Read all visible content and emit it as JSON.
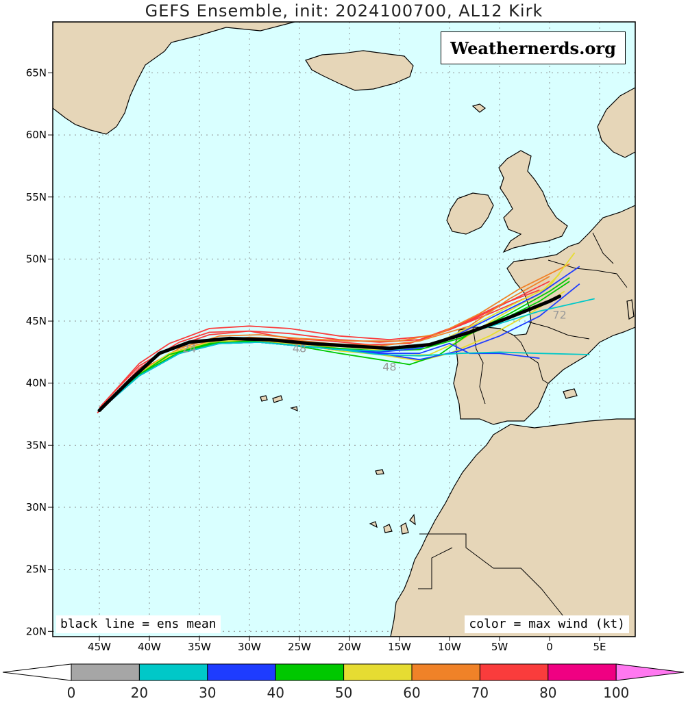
{
  "title": "GEFS Ensemble, init: 2024100700, AL12 Kirk",
  "watermark": "Weathernerds.org",
  "legend_left": "black line = ens mean",
  "legend_right": "color = max wind (kt)",
  "lat_labels": [
    "65N",
    "60N",
    "55N",
    "50N",
    "45N",
    "40N",
    "35N",
    "30N",
    "25N",
    "20N"
  ],
  "lon_labels": [
    "45W",
    "40W",
    "35W",
    "30W",
    "25W",
    "20W",
    "15W",
    "10W",
    "5W",
    "0",
    "5E"
  ],
  "colorbar": {
    "ticks": [
      "0",
      "20",
      "30",
      "40",
      "50",
      "60",
      "70",
      "80",
      "100"
    ],
    "colors": [
      "#a6a6a6",
      "#00c8c8",
      "#1e3cff",
      "#00c800",
      "#e6dc32",
      "#f08228",
      "#fa3c3c",
      "#f00082",
      "#ff78f0"
    ]
  },
  "colors": {
    "ocean": "#d9ffff",
    "land": "#e6d6b8",
    "mean": "#000000",
    "grid": "#8c8c8c"
  },
  "map_extent": {
    "lon": [
      -49,
      9
    ],
    "lat": [
      19.5,
      69
    ]
  },
  "annotations": [
    "24",
    "48",
    "72"
  ],
  "chart_data": {
    "type": "map-tracks",
    "mean_track": [
      [
        -45,
        37.8
      ],
      [
        -42,
        40.2
      ],
      [
        -39,
        42.4
      ],
      [
        -36,
        43.3
      ],
      [
        -32,
        43.6
      ],
      [
        -28,
        43.5
      ],
      [
        -24,
        43.2
      ],
      [
        -20,
        43
      ],
      [
        -16,
        42.8
      ],
      [
        -12,
        43.1
      ],
      [
        -8,
        44.1
      ],
      [
        -4,
        45.3
      ],
      [
        0,
        46.6
      ],
      [
        1,
        47
      ]
    ],
    "members": [
      {
        "wind": "70",
        "points": [
          [
            -45,
            38
          ],
          [
            -41,
            41.6
          ],
          [
            -38,
            43.2
          ],
          [
            -34,
            44.4
          ],
          [
            -30,
            44.6
          ],
          [
            -26,
            44.4
          ],
          [
            -21,
            43.8
          ],
          [
            -16,
            43.5
          ],
          [
            -12,
            43.8
          ],
          [
            -8,
            45
          ],
          [
            -4,
            46.6
          ],
          [
            0,
            48.2
          ]
        ]
      },
      {
        "wind": "70",
        "points": [
          [
            -45.2,
            37.6
          ],
          [
            -41,
            41.2
          ],
          [
            -38,
            42.8
          ],
          [
            -34,
            43.9
          ],
          [
            -30,
            44.2
          ],
          [
            -26,
            44
          ],
          [
            -21,
            43.5
          ],
          [
            -17,
            43.3
          ],
          [
            -13,
            43.5
          ],
          [
            -9,
            44.7
          ],
          [
            -5,
            46.3
          ],
          [
            -1,
            47.5
          ]
        ]
      },
      {
        "wind": "70",
        "points": [
          [
            -44.8,
            38.2
          ],
          [
            -41,
            41.4
          ],
          [
            -37,
            43.3
          ],
          [
            -34,
            44.1
          ],
          [
            -30,
            44.2
          ],
          [
            -26,
            43.6
          ],
          [
            -22,
            43.4
          ],
          [
            -18,
            43.1
          ],
          [
            -14,
            43.2
          ],
          [
            -10,
            44.3
          ],
          [
            -6,
            45.6
          ],
          [
            -2,
            47
          ]
        ]
      },
      {
        "wind": "60",
        "points": [
          [
            -45,
            37.9
          ],
          [
            -41,
            41
          ],
          [
            -37,
            42.8
          ],
          [
            -33,
            43.8
          ],
          [
            -29,
            43.9
          ],
          [
            -25,
            43.6
          ],
          [
            -20,
            43.4
          ],
          [
            -15,
            43.4
          ],
          [
            -11,
            44
          ],
          [
            -7,
            45.6
          ],
          [
            -3,
            47.6
          ],
          [
            2,
            49.6
          ]
        ]
      },
      {
        "wind": "60",
        "points": [
          [
            -45,
            37.8
          ],
          [
            -41.5,
            40.6
          ],
          [
            -38,
            42.4
          ],
          [
            -34,
            43.4
          ],
          [
            -30,
            43.7
          ],
          [
            -26,
            43.5
          ],
          [
            -22,
            43.2
          ],
          [
            -17,
            43
          ],
          [
            -13,
            43.4
          ],
          [
            -8,
            44.6
          ],
          [
            -4,
            46.8
          ],
          [
            0,
            48.6
          ]
        ]
      },
      {
        "wind": "50",
        "points": [
          [
            -45,
            37.8
          ],
          [
            -41,
            40.8
          ],
          [
            -37,
            42.6
          ],
          [
            -33,
            43.3
          ],
          [
            -29,
            43.4
          ],
          [
            -24,
            43.1
          ],
          [
            -20,
            42.9
          ],
          [
            -16,
            42.6
          ],
          [
            -12,
            43
          ],
          [
            -8,
            44.5
          ],
          [
            -4,
            46.2
          ],
          [
            0,
            47.8
          ],
          [
            2.5,
            50.5
          ]
        ]
      },
      {
        "wind": "50",
        "points": [
          [
            -45,
            37.8
          ],
          [
            -41,
            40.8
          ],
          [
            -38,
            42.4
          ],
          [
            -34,
            43.3
          ],
          [
            -30,
            43.5
          ],
          [
            -25,
            43.2
          ],
          [
            -20,
            42.7
          ],
          [
            -16,
            42.2
          ],
          [
            -12,
            42.3
          ],
          [
            -9,
            43.4
          ],
          [
            -5,
            45.4
          ],
          [
            -1,
            47.2
          ],
          [
            1,
            48.8
          ]
        ]
      },
      {
        "wind": "50",
        "points": [
          [
            -45,
            37.8
          ],
          [
            -41,
            40.8
          ],
          [
            -37,
            42.6
          ],
          [
            -33,
            43.4
          ],
          [
            -29,
            43.4
          ],
          [
            -25,
            43.1
          ],
          [
            -21,
            42.6
          ],
          [
            -17,
            42.3
          ],
          [
            -13,
            41.8
          ],
          [
            -10,
            42.4
          ],
          [
            -6,
            43.8
          ],
          [
            -2,
            45.6
          ],
          [
            1.5,
            47.4
          ]
        ]
      },
      {
        "wind": "40",
        "points": [
          [
            -45,
            37.8
          ],
          [
            -41,
            40.7
          ],
          [
            -38,
            42.3
          ],
          [
            -34,
            43.2
          ],
          [
            -30,
            43.4
          ],
          [
            -26,
            43.1
          ],
          [
            -21,
            42.4
          ],
          [
            -17,
            41.9
          ],
          [
            -14,
            41.5
          ],
          [
            -11,
            42.3
          ],
          [
            -8,
            44
          ],
          [
            -4,
            45.6
          ],
          [
            0,
            47.4
          ],
          [
            2,
            48.5
          ]
        ]
      },
      {
        "wind": "40",
        "points": [
          [
            -45,
            37.8
          ],
          [
            -41,
            40.7
          ],
          [
            -37,
            42.5
          ],
          [
            -33,
            43.3
          ],
          [
            -29,
            43.3
          ],
          [
            -25,
            43
          ],
          [
            -21,
            42.8
          ],
          [
            -17,
            42.6
          ],
          [
            -13,
            42.7
          ],
          [
            -9,
            43.6
          ],
          [
            -5,
            45
          ],
          [
            -1,
            46.6
          ],
          [
            2,
            48.2
          ]
        ]
      },
      {
        "wind": "30",
        "points": [
          [
            -45,
            37.8
          ],
          [
            -41,
            40.6
          ],
          [
            -37,
            42.4
          ],
          [
            -33,
            43.2
          ],
          [
            -29,
            43.3
          ],
          [
            -25,
            43
          ],
          [
            -21,
            42.7
          ],
          [
            -17,
            42.5
          ],
          [
            -13,
            42.8
          ],
          [
            -9,
            44
          ],
          [
            -5,
            45.6
          ],
          [
            -1,
            47.2
          ],
          [
            3,
            49.4
          ]
        ]
      },
      {
        "wind": "30",
        "points": [
          [
            -45,
            37.8
          ],
          [
            -41,
            40.6
          ],
          [
            -37,
            42.4
          ],
          [
            -33,
            43.2
          ],
          [
            -29,
            43.3
          ],
          [
            -25,
            43
          ],
          [
            -21,
            42.7
          ],
          [
            -17,
            42.4
          ],
          [
            -13,
            42.4
          ],
          [
            -10,
            43.2
          ],
          [
            -8,
            42.4
          ],
          [
            -5,
            42.4
          ],
          [
            -1,
            42
          ]
        ]
      },
      {
        "wind": "30",
        "points": [
          [
            -45,
            37.8
          ],
          [
            -41,
            40.6
          ],
          [
            -37,
            42.4
          ],
          [
            -33,
            43.2
          ],
          [
            -29,
            43.3
          ],
          [
            -25,
            43
          ],
          [
            -21,
            42.7
          ],
          [
            -17,
            42.4
          ],
          [
            -13,
            41.9
          ],
          [
            -9,
            42.6
          ],
          [
            -5,
            43.8
          ],
          [
            -1,
            45.4
          ],
          [
            3,
            48
          ]
        ]
      },
      {
        "wind": "20",
        "points": [
          [
            -45,
            37.8
          ],
          [
            -41,
            40.6
          ],
          [
            -37,
            42.4
          ],
          [
            -33,
            43.2
          ],
          [
            -29,
            43.3
          ],
          [
            -25,
            43
          ],
          [
            -21,
            42.7
          ],
          [
            -17,
            42.3
          ],
          [
            -13,
            42.2
          ],
          [
            -9,
            42.4
          ],
          [
            -5,
            42.5
          ],
          [
            -1,
            42.4
          ],
          [
            4,
            42.3
          ]
        ]
      },
      {
        "wind": "20",
        "points": [
          [
            -45,
            37.8
          ],
          [
            -41,
            40.6
          ],
          [
            -37,
            42.4
          ],
          [
            -33,
            43.2
          ],
          [
            -29,
            43.3
          ],
          [
            -25,
            43
          ],
          [
            -21,
            42.7
          ],
          [
            -17,
            42.6
          ],
          [
            -13,
            42.9
          ],
          [
            -9,
            43.8
          ],
          [
            -5,
            44.8
          ],
          [
            -1,
            45.8
          ],
          [
            4.5,
            46.8
          ]
        ]
      }
    ]
  }
}
